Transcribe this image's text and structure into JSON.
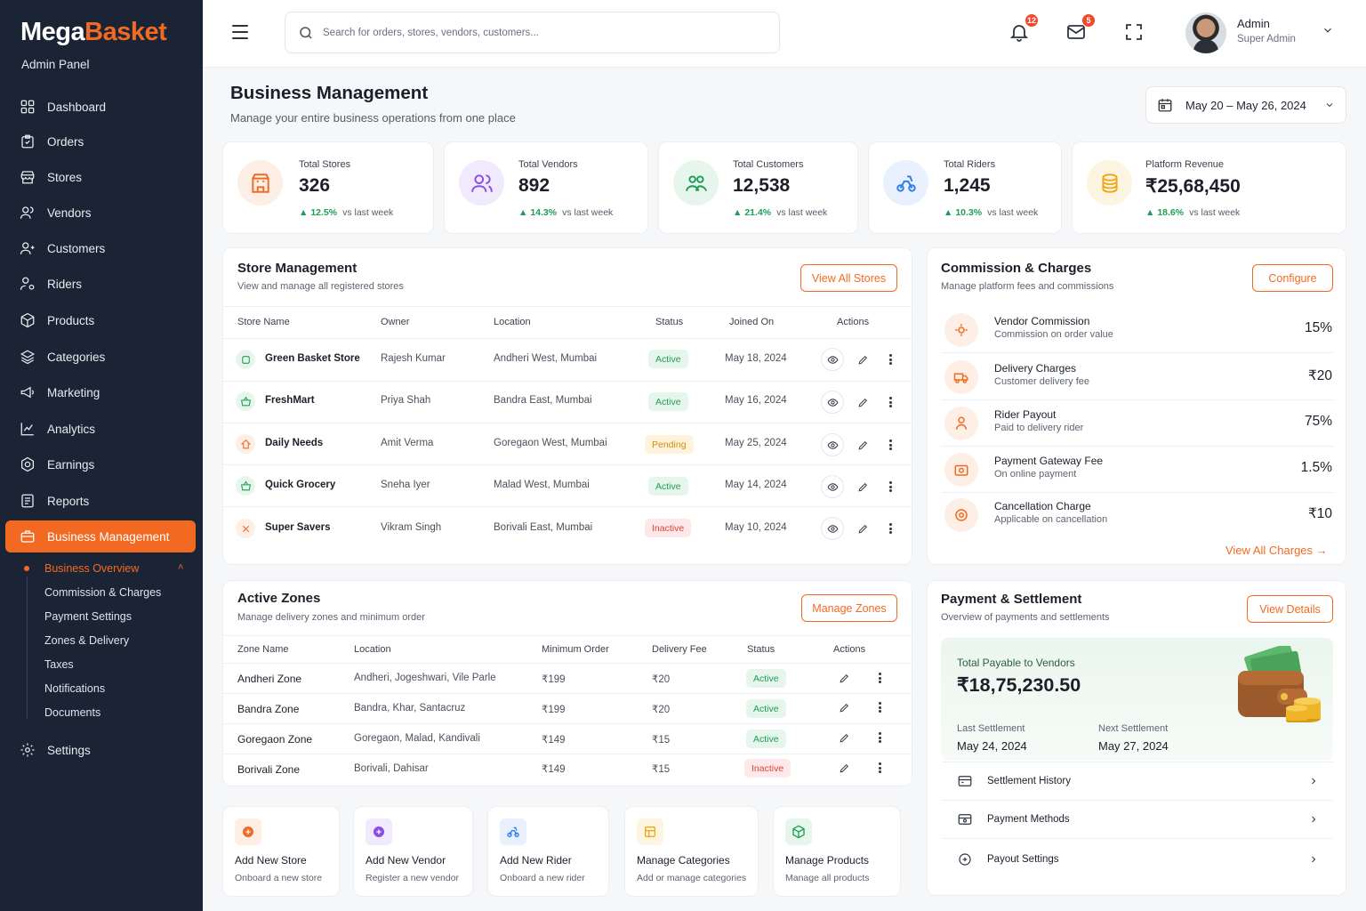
{
  "brand": {
    "name_part1": "Mega",
    "name_part2": "Basket",
    "subtitle": "Admin Panel",
    "accent": "#f26a22"
  },
  "sidebar": {
    "items": [
      {
        "label": "Dashboard",
        "icon": "grid-icon"
      },
      {
        "label": "Orders",
        "icon": "clipboard-icon"
      },
      {
        "label": "Stores",
        "icon": "store-icon"
      },
      {
        "label": "Vendors",
        "icon": "users-icon"
      },
      {
        "label": "Customers",
        "icon": "user-group-icon"
      },
      {
        "label": "Riders",
        "icon": "rider-icon"
      },
      {
        "label": "Products",
        "icon": "box-icon"
      },
      {
        "label": "Categories",
        "icon": "layers-icon"
      },
      {
        "label": "Marketing",
        "icon": "megaphone-icon"
      },
      {
        "label": "Analytics",
        "icon": "chart-icon"
      },
      {
        "label": "Earnings",
        "icon": "coin-icon"
      },
      {
        "label": "Reports",
        "icon": "report-icon"
      },
      {
        "label": "Business Management",
        "icon": "briefcase-icon"
      }
    ],
    "sub_items": [
      "Business Overview",
      "Commission & Charges",
      "Payment Settings",
      "Zones & Delivery",
      "Taxes",
      "Notifications",
      "Documents"
    ],
    "settings": "Settings"
  },
  "topbar": {
    "search_placeholder": "Search for orders, stores, vendors, customers...",
    "notifications_count": "12",
    "messages_count": "5",
    "user_name": "Admin",
    "user_role": "Super Admin"
  },
  "header": {
    "title": "Business Management",
    "subtitle": "Manage your entire business operations from one place",
    "date_range": "May 20 – May 26, 2024"
  },
  "stats": [
    {
      "label": "Total Stores",
      "value": "326",
      "change": "12.5%",
      "note": "vs last week",
      "color": "#f26a22"
    },
    {
      "label": "Total Vendors",
      "value": "892",
      "change": "14.3%",
      "note": "vs last week",
      "color": "#8a4de8"
    },
    {
      "label": "Total Customers",
      "value": "12,538",
      "change": "21.4%",
      "note": "vs last week",
      "color": "#1f9d55"
    },
    {
      "label": "Total Riders",
      "value": "1,245",
      "change": "10.3%",
      "note": "vs last week",
      "color": "#2f7be5"
    },
    {
      "label": "Platform Revenue",
      "value": "₹25,68,450",
      "change": "18.6%",
      "note": "vs last week",
      "color": "#f0a81a"
    }
  ],
  "stores": {
    "title": "Store Management",
    "subtitle": "View and manage all registered stores",
    "button": "View All Stores",
    "columns": [
      "Store Name",
      "Owner",
      "Location",
      "Status",
      "Joined On",
      "Actions"
    ],
    "rows": [
      {
        "name": "Green Basket Store",
        "owner": "Rajesh Kumar",
        "location": "Andheri West, Mumbai",
        "status": "Active",
        "joined": "May 18, 2024"
      },
      {
        "name": "FreshMart",
        "owner": "Priya Shah",
        "location": "Bandra East, Mumbai",
        "status": "Active",
        "joined": "May 16, 2024"
      },
      {
        "name": "Daily Needs",
        "owner": "Amit Verma",
        "location": "Goregaon West, Mumbai",
        "status": "Pending",
        "joined": "May 25, 2024"
      },
      {
        "name": "Quick Grocery",
        "owner": "Sneha Iyer",
        "location": "Malad West, Mumbai",
        "status": "Active",
        "joined": "May 14, 2024"
      },
      {
        "name": "Super Savers",
        "owner": "Vikram Singh",
        "location": "Borivali East, Mumbai",
        "status": "Inactive",
        "joined": "May 10, 2024"
      }
    ]
  },
  "commission": {
    "title": "Commission & Charges",
    "subtitle": "Manage platform fees and commissions",
    "button": "Configure",
    "rows": [
      {
        "name": "Vendor Commission",
        "desc": "Commission on order value",
        "value": "15%"
      },
      {
        "name": "Delivery Charges",
        "desc": "Customer delivery fee",
        "value": "₹20"
      },
      {
        "name": "Rider Payout",
        "desc": "Paid to delivery rider",
        "value": "75%"
      },
      {
        "name": "Payment Gateway Fee",
        "desc": "On online payment",
        "value": "1.5%"
      },
      {
        "name": "Cancellation Charge",
        "desc": "Applicable on cancellation",
        "value": "₹10"
      }
    ],
    "link": "View All Charges"
  },
  "zones": {
    "title": "Active Zones",
    "subtitle": "Manage delivery zones and minimum order",
    "button": "Manage Zones",
    "columns": [
      "Zone Name",
      "Location",
      "Minimum Order",
      "Delivery Fee",
      "Status",
      "Actions"
    ],
    "rows": [
      {
        "name": "Andheri Zone",
        "location": "Andheri, Jogeshwari, Vile Parle",
        "min": "₹199",
        "fee": "₹20",
        "status": "Active"
      },
      {
        "name": "Bandra Zone",
        "location": "Bandra, Khar, Santacruz",
        "min": "₹199",
        "fee": "₹20",
        "status": "Active"
      },
      {
        "name": "Goregaon Zone",
        "location": "Goregaon, Malad, Kandivali",
        "min": "₹149",
        "fee": "₹15",
        "status": "Active"
      },
      {
        "name": "Borivali Zone",
        "location": "Borivali, Dahisar",
        "min": "₹149",
        "fee": "₹15",
        "status": "Inactive"
      }
    ]
  },
  "payment": {
    "title": "Payment & Settlement",
    "subtitle": "Overview of payments and settlements",
    "button": "View Details",
    "payable_label": "Total Payable to Vendors",
    "payable_amount": "₹18,75,230.50",
    "last_label": "Last Settlement",
    "last_date": "May 24, 2024",
    "next_label": "Next Settlement",
    "next_date": "May 27, 2024",
    "links": [
      "Settlement History",
      "Payment Methods",
      "Payout Settings"
    ]
  },
  "quick_actions": [
    {
      "title": "Add New Store",
      "sub": "Onboard a new store",
      "color": "#f26a22",
      "bg": "#fdeee6"
    },
    {
      "title": "Add New Vendor",
      "sub": "Register a new vendor",
      "color": "#8a4de8",
      "bg": "#f1eafd"
    },
    {
      "title": "Add New Rider",
      "sub": "Onboard a new rider",
      "color": "#2f7be5",
      "bg": "#e8f1fd"
    },
    {
      "title": "Manage Categories",
      "sub": "Add or manage categories",
      "color": "#f0a81a",
      "bg": "#fdf4e1"
    },
    {
      "title": "Manage Products",
      "sub": "Manage all products",
      "color": "#1f9d55",
      "bg": "#e7f6ec"
    }
  ]
}
